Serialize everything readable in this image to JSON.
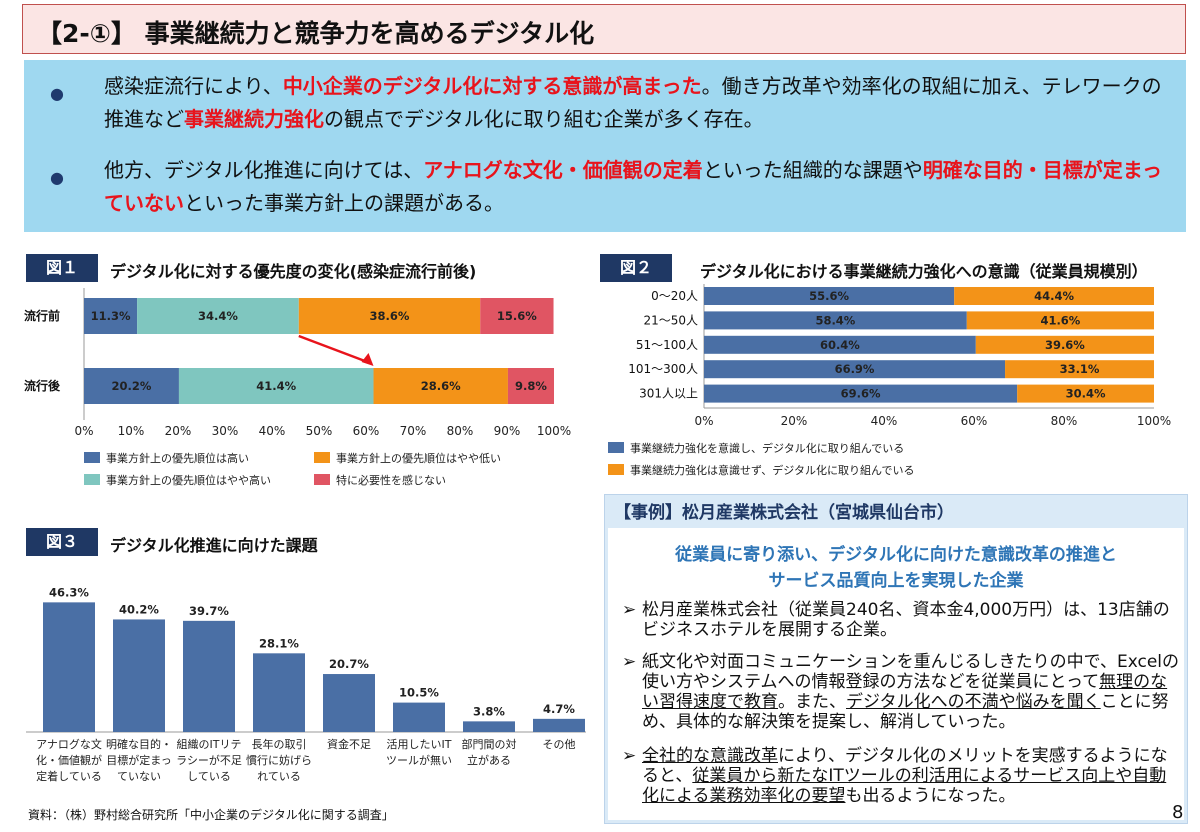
{
  "title": "【2-①】 事業継続力と競争力を高めるデジタル化",
  "summary": {
    "bullet1": {
      "a": "感染症流行により、",
      "b": "中小企業のデジタル化に対する意識が高まった",
      "c": "。働き方改革や効率化の取組に加え、テレワークの推進など",
      "d": "事業継続力強化",
      "e": "の観点でデジタル化に取り組む企業が多く存在。"
    },
    "bullet2": {
      "a": "他方、デジタル化推進に向けては、",
      "b": "アナログな文化・価値観の定着",
      "c": "といった組織的な課題や",
      "d": "明確な目的・目標が定まっていない",
      "e": "といった事業方針上の課題がある。"
    }
  },
  "fig1": {
    "label": "図１",
    "title": "デジタル化に対する優先度の変化(感染症流行前後)",
    "colors": [
      "#4a6fa5",
      "#7fc6bf",
      "#f39318",
      "#e05563"
    ],
    "legend": [
      "事業方針上の優先順位は高い",
      "事業方針上の優先順位はやや高い",
      "事業方針上の優先順位はやや低い",
      "特に必要性を感じない"
    ],
    "xticks": [
      "0%",
      "10%",
      "20%",
      "30%",
      "40%",
      "50%",
      "60%",
      "70%",
      "80%",
      "90%",
      "100%"
    ],
    "chart_data": {
      "type": "bar",
      "categories": [
        "流行前",
        "流行後"
      ],
      "series": [
        {
          "name": "事業方針上の優先順位は高い",
          "values": [
            11.3,
            20.2
          ],
          "labels": [
            "11.3%",
            "20.2%"
          ]
        },
        {
          "name": "事業方針上の優先順位はやや高い",
          "values": [
            34.4,
            41.4
          ],
          "labels": [
            "34.4%",
            "41.4%"
          ]
        },
        {
          "name": "事業方針上の優先順位はやや低い",
          "values": [
            38.6,
            28.6
          ],
          "labels": [
            "38.6%",
            "28.6%"
          ]
        },
        {
          "name": "特に必要性を感じない",
          "values": [
            15.6,
            9.8
          ],
          "labels": [
            "15.6%",
            "9.8%"
          ]
        }
      ],
      "xlim": [
        0,
        100
      ],
      "stacked": true
    }
  },
  "fig2": {
    "label": "図２",
    "title": "デジタル化における事業継続力強化への意識（従業員規模別）",
    "colors": [
      "#4a6fa5",
      "#f39318"
    ],
    "legend": [
      "事業継続力強化を意識し、デジタル化に取り組んでいる",
      "事業継続力強化は意識せず、デジタル化に取り組んでいる"
    ],
    "xticks": [
      "0%",
      "20%",
      "40%",
      "60%",
      "80%",
      "100%"
    ],
    "chart_data": {
      "type": "bar",
      "categories": [
        "0～20人",
        "21～50人",
        "51～100人",
        "101～300人",
        "301人以上"
      ],
      "series": [
        {
          "name": "事業継続力強化を意識し、デジタル化に取り組んでいる",
          "values": [
            55.6,
            58.4,
            60.4,
            66.9,
            69.6
          ],
          "labels": [
            "55.6%",
            "58.4%",
            "60.4%",
            "66.9%",
            "69.6%"
          ]
        },
        {
          "name": "事業継続力強化は意識せず、デジタル化に取り組んでいる",
          "values": [
            44.4,
            41.6,
            39.6,
            33.1,
            30.4
          ],
          "labels": [
            "44.4%",
            "41.6%",
            "39.6%",
            "33.1%",
            "30.4%"
          ]
        }
      ],
      "xlim": [
        0,
        100
      ],
      "stacked": true
    }
  },
  "fig3": {
    "label": "図３",
    "title": "デジタル化推進に向けた課題",
    "color": "#4a6fa5",
    "chart_data": {
      "type": "bar",
      "categories": [
        [
          "アナログな文",
          "化・価値観が",
          "定着している"
        ],
        [
          "明確な目的・",
          "目標が定まっ",
          "ていない"
        ],
        [
          "組織のITリテ",
          "ラシーが不足",
          "している"
        ],
        [
          "長年の取引",
          "慣行に妨げら",
          "れている"
        ],
        [
          "資金不足"
        ],
        [
          "活用したいIT",
          "ツールが無い"
        ],
        [
          "部門間の対",
          "立がある"
        ],
        [
          "その他"
        ]
      ],
      "values": [
        46.3,
        40.2,
        39.7,
        28.1,
        20.7,
        10.5,
        3.8,
        4.7
      ],
      "labels": [
        "46.3%",
        "40.2%",
        "39.7%",
        "28.1%",
        "20.7%",
        "10.5%",
        "3.8%",
        "4.7%"
      ],
      "ylim": [
        0,
        50
      ]
    }
  },
  "case": {
    "heading": "【事例】松月産業株式会社（宮城県仙台市）",
    "subtitle1": "従業員に寄り添い、デジタル化に向けた意識改革の推進と",
    "subtitle2": "サービス品質向上を実現した企業",
    "arrow": "➢",
    "item1": "松月産業株式会社（従業員240名、資本金4,000万円）は、13店舗のビジネスホテルを展開する企業。",
    "item2": {
      "a": "紙文化や対面コミュニケーションを重んじるしきたりの中で、Excelの使い方やシステムへの情報登録の方法などを従業員にとって",
      "b": "無理のない習得速度で教育",
      "c": "。また、",
      "d": "デジタル化への不満や悩みを聞く",
      "e": "ことに努め、具体的な解決策を提案し、解消していった。"
    },
    "item3": {
      "a": "全社的な意識改革",
      "b": "により、デジタル化のメリットを実感するようになると、",
      "c": "従業員から新たなITツールの利活用によるサービス向上や自動化による業務効率化の要望",
      "d": "も出るようになった。"
    }
  },
  "source": "資料：（株）野村総合研究所「中小企業のデジタル化に関する調査」",
  "page_number": "8"
}
